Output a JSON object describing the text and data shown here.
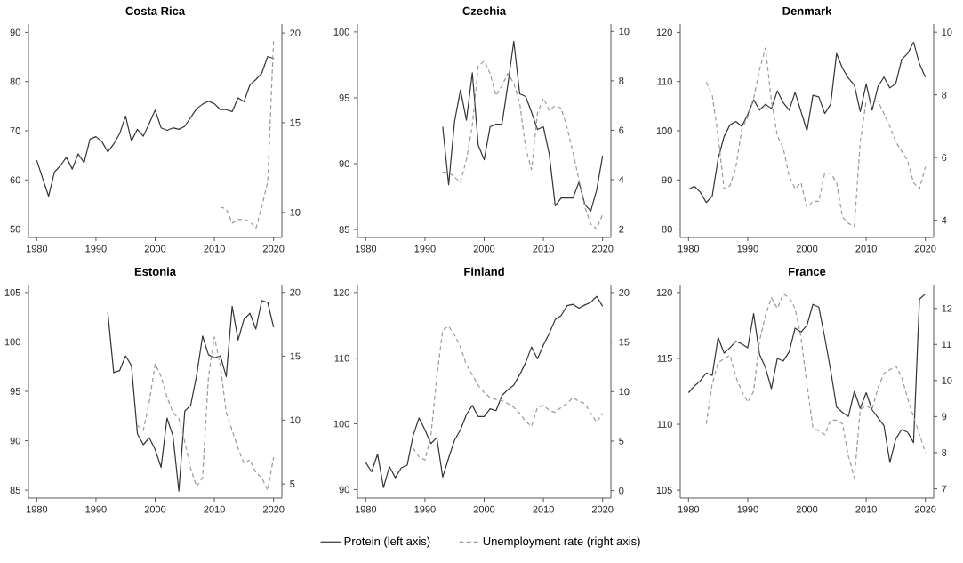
{
  "chart_data": [
    {
      "type": "line",
      "title": "Costa Rica",
      "legend": "bottom",
      "xlim": [
        1978.6,
        2021.4
      ],
      "xticks": [
        1980,
        1990,
        2000,
        2010,
        2020
      ],
      "ylim": [
        48.3,
        91.7
      ],
      "yticks": [
        50,
        60,
        70,
        80,
        90
      ],
      "y2lim": [
        8.6,
        20.5
      ],
      "y2ticks": [
        10,
        15,
        20
      ],
      "series": [
        {
          "name": "Protein (left axis)",
          "color": "#333333",
          "line_style": "solid",
          "x": [
            1980,
            1981,
            1982,
            1983,
            1984,
            1985,
            1986,
            1987,
            1988,
            1989,
            1990,
            1991,
            1992,
            1993,
            1994,
            1995,
            1996,
            1997,
            1998,
            1999,
            2000,
            2001,
            2002,
            2003,
            2004,
            2005,
            2006,
            2007,
            2008,
            2009,
            2010,
            2011,
            2012,
            2013,
            2014,
            2015,
            2016,
            2017,
            2018,
            2019,
            2020
          ],
          "values": [
            64.0,
            60.3,
            56.7,
            61.6,
            62.9,
            64.6,
            62.2,
            65.3,
            63.5,
            68.3,
            68.8,
            67.8,
            65.7,
            67.3,
            69.4,
            73.0,
            67.9,
            70.3,
            68.9,
            71.5,
            74.2,
            70.6,
            70.1,
            70.6,
            70.3,
            70.9,
            72.7,
            74.5,
            75.4,
            76.0,
            75.5,
            74.3,
            74.3,
            73.9,
            76.7,
            75.9,
            79.3,
            80.4,
            81.7,
            85.1,
            84.7
          ]
        },
        {
          "name": "Unemployment rate (right axis)",
          "color": "#999999",
          "line_style": "dashed",
          "axis": "y2",
          "x": [
            2011,
            2012,
            2013,
            2014,
            2015,
            2016,
            2017,
            2018,
            2019,
            2020
          ],
          "values": [
            10.3,
            10.2,
            9.4,
            9.6,
            9.6,
            9.5,
            9.1,
            10.3,
            11.7,
            19.6
          ]
        }
      ]
    },
    {
      "type": "line",
      "title": "Czechia",
      "xlim": [
        1978.6,
        2021.4
      ],
      "xticks": [
        1980,
        1990,
        2000,
        2010,
        2020
      ],
      "ylim": [
        84.4,
        100.6
      ],
      "yticks": [
        85,
        90,
        95,
        100
      ],
      "y2lim": [
        1.66,
        10.3
      ],
      "y2ticks": [
        2,
        4,
        6,
        8,
        10
      ],
      "series": [
        {
          "color": "#333333",
          "line_style": "solid",
          "x": [
            1993,
            1994,
            1995,
            1996,
            1997,
            1998,
            1999,
            2000,
            2001,
            2002,
            2003,
            2004,
            2005,
            2006,
            2007,
            2008,
            2009,
            2010,
            2011,
            2012,
            2013,
            2014,
            2015,
            2016,
            2017,
            2018,
            2019,
            2020
          ],
          "values": [
            92.8,
            88.4,
            93.2,
            95.6,
            93.3,
            96.9,
            91.4,
            90.3,
            92.8,
            93.0,
            93.0,
            96.0,
            99.3,
            95.3,
            95.1,
            93.9,
            92.6,
            92.8,
            90.7,
            86.8,
            87.4,
            87.4,
            87.4,
            88.6,
            86.9,
            86.4,
            88.0,
            90.6
          ]
        },
        {
          "color": "#999999",
          "line_style": "dashed",
          "axis": "y2",
          "x": [
            1993,
            1994,
            1995,
            1996,
            1997,
            1998,
            1999,
            2000,
            2001,
            2002,
            2003,
            2004,
            2005,
            2006,
            2007,
            2008,
            2009,
            2010,
            2011,
            2012,
            2013,
            2014,
            2015,
            2016,
            2017,
            2018,
            2019,
            2020
          ],
          "values": [
            4.3,
            4.3,
            4.1,
            3.9,
            4.8,
            6.2,
            8.6,
            8.8,
            8.3,
            7.4,
            7.8,
            8.3,
            7.9,
            7.1,
            5.3,
            4.4,
            6.7,
            7.3,
            6.8,
            7.0,
            6.9,
            6.1,
            5.1,
            4.0,
            2.9,
            2.2,
            2.0,
            2.6
          ]
        }
      ]
    },
    {
      "type": "line",
      "title": "Denmark",
      "xlim": [
        1978.6,
        2021.4
      ],
      "xticks": [
        1980,
        1990,
        2000,
        2010,
        2020
      ],
      "ylim": [
        78.3,
        121.7
      ],
      "yticks": [
        80,
        90,
        100,
        110,
        120
      ],
      "y2lim": [
        3.45,
        10.26
      ],
      "y2ticks": [
        4,
        6,
        8,
        10
      ],
      "series": [
        {
          "color": "#333333",
          "line_style": "solid",
          "x": [
            1980,
            1981,
            1982,
            1983,
            1984,
            1985,
            1986,
            1987,
            1988,
            1989,
            1990,
            1991,
            1992,
            1993,
            1994,
            1995,
            1996,
            1997,
            1998,
            1999,
            2000,
            2001,
            2002,
            2003,
            2004,
            2005,
            2006,
            2007,
            2008,
            2009,
            2010,
            2011,
            2012,
            2013,
            2014,
            2015,
            2016,
            2017,
            2018,
            2019,
            2020
          ],
          "values": [
            88.1,
            88.7,
            87.5,
            85.4,
            86.7,
            94.3,
            98.8,
            101.2,
            101.9,
            100.9,
            103.3,
            106.3,
            104.2,
            105.4,
            104.5,
            108.1,
            105.7,
            104.2,
            107.8,
            103.9,
            100.0,
            107.2,
            106.9,
            103.5,
            105.4,
            115.7,
            112.7,
            110.7,
            109.3,
            103.9,
            109.5,
            104.2,
            109.0,
            110.9,
            108.7,
            109.6,
            114.5,
            115.7,
            118.0,
            113.6,
            110.9
          ]
        },
        {
          "color": "#999999",
          "line_style": "dashed",
          "axis": "y2",
          "x": [
            1983,
            1984,
            1985,
            1986,
            1987,
            1988,
            1989,
            1990,
            1991,
            1992,
            1993,
            1994,
            1995,
            1996,
            1997,
            1998,
            1999,
            2000,
            2001,
            2002,
            2003,
            2004,
            2005,
            2006,
            2007,
            2008,
            2009,
            2010,
            2011,
            2012,
            2013,
            2014,
            2015,
            2016,
            2017,
            2018,
            2019,
            2020
          ],
          "values": [
            8.4,
            8.0,
            6.7,
            5.0,
            5.1,
            5.7,
            6.9,
            7.3,
            7.9,
            8.8,
            9.5,
            7.8,
            6.7,
            6.3,
            5.4,
            5.0,
            5.2,
            4.4,
            4.6,
            4.6,
            5.5,
            5.5,
            5.2,
            4.1,
            3.9,
            3.8,
            6.5,
            7.8,
            7.8,
            7.8,
            7.4,
            7.0,
            6.5,
            6.2,
            5.9,
            5.2,
            5.0,
            5.7
          ]
        }
      ]
    },
    {
      "type": "line",
      "title": "Estonia",
      "xlim": [
        1978.6,
        2021.4
      ],
      "xticks": [
        1980,
        1990,
        2000,
        2010,
        2020
      ],
      "ylim": [
        84.2,
        105.8
      ],
      "yticks": [
        85,
        90,
        95,
        100,
        105
      ],
      "y2lim": [
        3.9,
        20.6
      ],
      "y2ticks": [
        5,
        10,
        15,
        20
      ],
      "series": [
        {
          "color": "#333333",
          "line_style": "solid",
          "x": [
            1992,
            1993,
            1994,
            1995,
            1996,
            1997,
            1998,
            1999,
            2000,
            2001,
            2002,
            2003,
            2004,
            2005,
            2006,
            2007,
            2008,
            2009,
            2010,
            2011,
            2012,
            2013,
            2014,
            2015,
            2016,
            2017,
            2018,
            2019,
            2020
          ],
          "values": [
            103.0,
            96.9,
            97.1,
            98.6,
            97.6,
            90.7,
            89.6,
            90.3,
            89.1,
            87.3,
            92.3,
            90.5,
            84.9,
            93.0,
            93.6,
            96.6,
            100.6,
            98.7,
            98.4,
            98.6,
            96.5,
            103.6,
            100.2,
            102.3,
            102.9,
            101.3,
            104.2,
            104.0,
            101.5
          ]
        },
        {
          "color": "#999999",
          "line_style": "dashed",
          "axis": "y2",
          "x": [
            1997,
            1998,
            1999,
            2000,
            2001,
            2002,
            2003,
            2004,
            2005,
            2006,
            2007,
            2008,
            2009,
            2010,
            2011,
            2012,
            2013,
            2014,
            2015,
            2016,
            2017,
            2018,
            2019,
            2020
          ],
          "values": [
            9.6,
            9.2,
            11.4,
            14.4,
            13.4,
            11.8,
            10.6,
            10.1,
            8.3,
            6.2,
            4.8,
            5.5,
            13.4,
            16.5,
            14.3,
            10.6,
            9.2,
            7.8,
            6.6,
            6.9,
            5.9,
            5.5,
            4.5,
            7.1
          ]
        }
      ]
    },
    {
      "type": "line",
      "title": "Finland",
      "xlim": [
        1978.6,
        2021.4
      ],
      "xticks": [
        1980,
        1990,
        2000,
        2010,
        2020
      ],
      "ylim": [
        88.7,
        121.2
      ],
      "yticks": [
        90,
        100,
        110,
        120
      ],
      "y2lim": [
        -0.75,
        20.8
      ],
      "y2ticks": [
        0,
        5,
        10,
        15,
        20
      ],
      "series": [
        {
          "color": "#333333",
          "line_style": "solid",
          "x": [
            1980,
            1981,
            1982,
            1983,
            1984,
            1985,
            1986,
            1987,
            1988,
            1989,
            1990,
            1991,
            1992,
            1993,
            1994,
            1995,
            1996,
            1997,
            1998,
            1999,
            2000,
            2001,
            2002,
            2003,
            2004,
            2005,
            2006,
            2007,
            2008,
            2009,
            2010,
            2011,
            2012,
            2013,
            2014,
            2015,
            2016,
            2017,
            2018,
            2019,
            2020
          ],
          "values": [
            94.1,
            92.7,
            95.4,
            90.3,
            93.5,
            91.8,
            93.3,
            93.7,
            98.2,
            100.9,
            99.1,
            97.0,
            97.9,
            91.9,
            94.8,
            97.5,
            99.1,
            101.4,
            102.8,
            101.1,
            101.1,
            102.3,
            102.0,
            104.3,
            105.2,
            105.9,
            107.5,
            109.3,
            111.7,
            109.9,
            112.0,
            113.8,
            115.9,
            116.5,
            118.0,
            118.2,
            117.6,
            118.1,
            118.5,
            119.4,
            117.9
          ]
        },
        {
          "color": "#999999",
          "line_style": "dashed",
          "axis": "y2",
          "x": [
            1988,
            1989,
            1990,
            1991,
            1992,
            1993,
            1994,
            1995,
            1996,
            1997,
            1998,
            1999,
            2000,
            2001,
            2002,
            2003,
            2004,
            2005,
            2006,
            2007,
            2008,
            2009,
            2010,
            2011,
            2012,
            2013,
            2014,
            2015,
            2016,
            2017,
            2018,
            2019,
            2020
          ],
          "values": [
            4.3,
            3.4,
            3.1,
            5.5,
            11.5,
            16.2,
            16.6,
            15.7,
            14.5,
            12.7,
            11.7,
            10.6,
            9.9,
            9.4,
            9.2,
            9.1,
            8.8,
            8.4,
            7.8,
            7.0,
            6.5,
            8.4,
            8.6,
            8.1,
            7.9,
            8.4,
            8.8,
            9.4,
            9.0,
            8.8,
            7.8,
            6.9,
            7.8
          ]
        }
      ]
    },
    {
      "type": "line",
      "title": "France",
      "xlim": [
        1978.6,
        2021.4
      ],
      "xticks": [
        1980,
        1990,
        2000,
        2010,
        2020
      ],
      "ylim": [
        104.4,
        120.6
      ],
      "yticks": [
        105,
        110,
        115,
        120
      ],
      "y2lim": [
        6.74,
        12.66
      ],
      "y2ticks": [
        7,
        8,
        9,
        10,
        11,
        12
      ],
      "series": [
        {
          "color": "#333333",
          "line_style": "solid",
          "x": [
            1980,
            1981,
            1982,
            1983,
            1984,
            1985,
            1986,
            1987,
            1988,
            1989,
            1990,
            1991,
            1992,
            1993,
            1994,
            1995,
            1996,
            1997,
            1998,
            1999,
            2000,
            2001,
            2002,
            2003,
            2004,
            2005,
            2006,
            2007,
            2008,
            2009,
            2010,
            2011,
            2012,
            2013,
            2014,
            2015,
            2016,
            2017,
            2018,
            2019,
            2020
          ],
          "values": [
            112.4,
            112.9,
            113.3,
            113.9,
            113.7,
            116.6,
            115.4,
            115.8,
            116.3,
            116.1,
            115.8,
            118.4,
            115.3,
            114.3,
            112.7,
            115.0,
            114.8,
            115.5,
            117.3,
            117.0,
            117.5,
            119.1,
            118.9,
            116.6,
            114.1,
            111.3,
            110.9,
            110.6,
            112.5,
            111.2,
            112.4,
            111.1,
            110.5,
            109.9,
            107.1,
            108.9,
            109.6,
            109.4,
            108.6,
            119.5,
            119.9
          ]
        },
        {
          "color": "#999999",
          "line_style": "dashed",
          "axis": "y2",
          "x": [
            1983,
            1984,
            1985,
            1986,
            1987,
            1988,
            1989,
            1990,
            1991,
            1992,
            1993,
            1994,
            1995,
            1996,
            1997,
            1998,
            1999,
            2000,
            2001,
            2002,
            2003,
            2004,
            2005,
            2006,
            2007,
            2008,
            2009,
            2010,
            2011,
            2012,
            2013,
            2014,
            2015,
            2016,
            2017,
            2018,
            2019,
            2020
          ],
          "values": [
            8.8,
            9.9,
            10.5,
            10.6,
            10.7,
            10.1,
            9.7,
            9.4,
            9.7,
            11.1,
            11.8,
            12.3,
            12.0,
            12.4,
            12.3,
            12.0,
            11.2,
            9.9,
            8.7,
            8.6,
            8.5,
            8.9,
            8.9,
            8.8,
            7.9,
            7.3,
            9.2,
            9.3,
            9.2,
            9.8,
            10.2,
            10.3,
            10.4,
            10.1,
            9.5,
            9.0,
            8.5,
            8.0
          ]
        }
      ]
    }
  ]
}
